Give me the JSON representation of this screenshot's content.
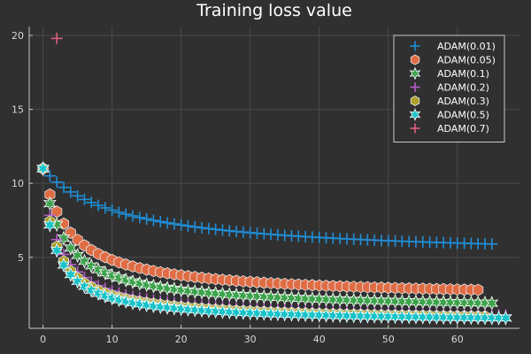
{
  "chart_data": {
    "type": "scatter",
    "title": "Training loss value",
    "xlabel": "",
    "ylabel": "",
    "xlim": [
      -2,
      69
    ],
    "ylim": [
      0.2,
      20.6
    ],
    "xticks": [
      0,
      10,
      20,
      30,
      40,
      50,
      60
    ],
    "yticks": [
      5,
      10,
      15,
      20
    ],
    "grid": true,
    "legend_position": "top-right",
    "background": "#303030",
    "series": [
      {
        "name": "ADAM(0.01)",
        "marker": "plus",
        "color": "#1f8fd9",
        "x_start": 0,
        "x_end": 65,
        "start_value": 11.0,
        "end_value": 5.9
      },
      {
        "name": "ADAM(0.05)",
        "marker": "hexagon",
        "color": "#e06c44",
        "x_start": 0,
        "x_end": 63,
        "start_value": 11.0,
        "end_value": 2.8
      },
      {
        "name": "ADAM(0.1)",
        "marker": "star6",
        "color": "#3da34c",
        "x_start": 0,
        "x_end": 65,
        "start_value": 11.0,
        "end_value": 1.9
      },
      {
        "name": "ADAM(0.2)",
        "marker": "plus",
        "color": "#b65ec9",
        "x_start": 0,
        "x_end": 67,
        "start_value": 11.0,
        "end_value": 1.1
      },
      {
        "name": "ADAM(0.3)",
        "marker": "hexagon",
        "color": "#ada02c",
        "x_start": 0,
        "x_end": 64,
        "start_value": 11.0,
        "end_value": 1.0
      },
      {
        "name": "ADAM(0.5)",
        "marker": "star6",
        "color": "#19c3c9",
        "x_start": 0,
        "x_end": 67,
        "start_value": 11.0,
        "end_value": 0.9
      },
      {
        "name": "ADAM(0.7)",
        "marker": "plus",
        "color": "#e0607e",
        "x_start": 2,
        "x_end": 2,
        "start_value": 19.8,
        "end_value": 19.8
      }
    ]
  }
}
